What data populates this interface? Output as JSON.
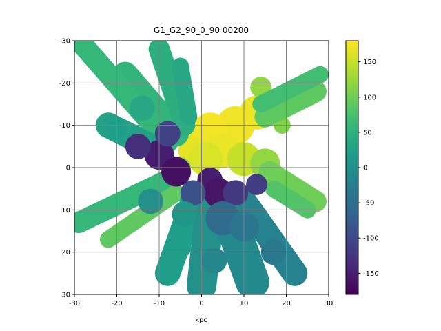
{
  "chart_data": {
    "type": "heatmap",
    "title": "G1_G2_90_0_90   00200",
    "xlabel": "kpc",
    "ylabel": "",
    "xlim": [
      -30,
      30
    ],
    "ylim": [
      -30,
      30
    ],
    "y_axis_inverted": true,
    "grid": true,
    "x_ticks": [
      "-30",
      "-20",
      "-10",
      "0",
      "10",
      "20",
      "30"
    ],
    "y_ticks": [
      "-30",
      "-20",
      "-10",
      "0",
      "10",
      "20",
      "30"
    ],
    "colormap": "viridis",
    "colorbar": {
      "range": [
        -180,
        180
      ],
      "ticks": [
        "150",
        "100",
        "50",
        "0",
        "-50",
        "-100",
        "-150"
      ],
      "tick_values": [
        150,
        100,
        50,
        0,
        -50,
        -100,
        -150
      ]
    },
    "regions": [
      {
        "kind": "blob",
        "x": 13,
        "y": -13,
        "r": 4.0,
        "value": 170
      },
      {
        "kind": "blob",
        "x": 8,
        "y": -10,
        "r": 4.5,
        "value": 172
      },
      {
        "kind": "blob",
        "x": 2,
        "y": -9,
        "r": 4.0,
        "value": 175
      },
      {
        "kind": "blob",
        "x": -1,
        "y": -7,
        "r": 3.5,
        "value": 172
      },
      {
        "kind": "blob",
        "x": -2,
        "y": -4,
        "r": 3.5,
        "value": 168
      },
      {
        "kind": "blob",
        "x": 5,
        "y": -4,
        "r": 4.0,
        "value": 170
      },
      {
        "kind": "blob",
        "x": 1,
        "y": -2,
        "r": 4.0,
        "value": 160
      },
      {
        "kind": "blob",
        "x": 10,
        "y": -2,
        "r": 4.0,
        "value": 150
      },
      {
        "kind": "blob",
        "x": 15,
        "y": -1,
        "r": 3.5,
        "value": 120
      },
      {
        "kind": "blob",
        "x": -5,
        "y": 0,
        "r": 2.5,
        "value": 120
      },
      {
        "kind": "blob",
        "x": 14,
        "y": -19,
        "r": 2.5,
        "value": 120
      },
      {
        "kind": "blob",
        "x": 19,
        "y": -10,
        "r": 2.0,
        "value": 110
      },
      {
        "kind": "stream",
        "x1": 15,
        "y1": -12,
        "x2": 27,
        "y2": -18,
        "w": 2.5,
        "value": 90
      },
      {
        "kind": "stream",
        "x1": 14,
        "y1": -15,
        "x2": 28,
        "y2": -22,
        "w": 2.0,
        "value": 70
      },
      {
        "kind": "stream",
        "x1": 16,
        "y1": 1,
        "x2": 27,
        "y2": 8,
        "w": 2.5,
        "value": 100
      },
      {
        "kind": "stream",
        "x1": 17,
        "y1": 5,
        "x2": 25,
        "y2": 10,
        "w": 2.0,
        "value": 80
      },
      {
        "kind": "stream",
        "x1": -6,
        "y1": -8,
        "x2": -18,
        "y2": -22,
        "w": 3.0,
        "value": 55
      },
      {
        "kind": "stream",
        "x1": -8,
        "y1": -6,
        "x2": -28,
        "y2": -29,
        "w": 2.5,
        "value": 60
      },
      {
        "kind": "stream",
        "x1": -4,
        "y1": -10,
        "x2": -10,
        "y2": -28,
        "w": 2.5,
        "value": 45
      },
      {
        "kind": "stream",
        "x1": -3,
        "y1": -12,
        "x2": -5,
        "y2": -24,
        "w": 2.0,
        "value": 35
      },
      {
        "kind": "stream",
        "x1": -10,
        "y1": -4,
        "x2": -22,
        "y2": -10,
        "w": 3.0,
        "value": 25
      },
      {
        "kind": "stream",
        "x1": -8,
        "y1": 3,
        "x2": -29,
        "y2": 13,
        "w": 2.5,
        "value": 60
      },
      {
        "kind": "stream",
        "x1": -6,
        "y1": 6,
        "x2": -22,
        "y2": 17,
        "w": 2.0,
        "value": 90
      },
      {
        "kind": "stream",
        "x1": -2,
        "y1": 8,
        "x2": -8,
        "y2": 25,
        "w": 3.0,
        "value": 20
      },
      {
        "kind": "stream",
        "x1": 2,
        "y1": 10,
        "x2": 0,
        "y2": 28,
        "w": 3.5,
        "value": 0
      },
      {
        "kind": "stream",
        "x1": 6,
        "y1": 10,
        "x2": 12,
        "y2": 27,
        "w": 4.0,
        "value": -10
      },
      {
        "kind": "stream",
        "x1": 10,
        "y1": 8,
        "x2": 22,
        "y2": 25,
        "w": 3.0,
        "value": -20
      },
      {
        "kind": "blob",
        "x": -10,
        "y": -3,
        "r": 3.5,
        "value": -150
      },
      {
        "kind": "blob",
        "x": -15,
        "y": -5,
        "r": 3.0,
        "value": -130
      },
      {
        "kind": "blob",
        "x": -6,
        "y": 1,
        "r": 3.5,
        "value": -165
      },
      {
        "kind": "blob",
        "x": -8,
        "y": -8,
        "r": 3.0,
        "value": -110
      },
      {
        "kind": "blob",
        "x": 2,
        "y": 3,
        "r": 3.0,
        "value": -150
      },
      {
        "kind": "blob",
        "x": 4,
        "y": 6,
        "r": 3.5,
        "value": -160
      },
      {
        "kind": "blob",
        "x": 8,
        "y": 6,
        "r": 3.0,
        "value": -120
      },
      {
        "kind": "blob",
        "x": 13,
        "y": 4,
        "r": 2.5,
        "value": -115
      },
      {
        "kind": "blob",
        "x": -2,
        "y": 6,
        "r": 3.0,
        "value": -90
      },
      {
        "kind": "blob",
        "x": 5,
        "y": 12,
        "r": 4.0,
        "value": -55
      },
      {
        "kind": "blob",
        "x": -4,
        "y": 11,
        "r": 3.0,
        "value": 10
      },
      {
        "kind": "blob",
        "x": -5,
        "y": 19,
        "r": 2.5,
        "value": 20
      },
      {
        "kind": "blob",
        "x": 10,
        "y": 14,
        "r": 3.5,
        "value": -40
      },
      {
        "kind": "blob",
        "x": 17,
        "y": 20,
        "r": 3.0,
        "value": -35
      },
      {
        "kind": "blob",
        "x": 3,
        "y": 22,
        "r": 3.0,
        "value": -15
      },
      {
        "kind": "blob",
        "x": -14,
        "y": -14,
        "r": 3.0,
        "value": 35
      },
      {
        "kind": "blob",
        "x": -20,
        "y": -9,
        "r": 2.5,
        "value": 20
      },
      {
        "kind": "blob",
        "x": -12,
        "y": 8,
        "r": 3.0,
        "value": 0
      }
    ]
  }
}
